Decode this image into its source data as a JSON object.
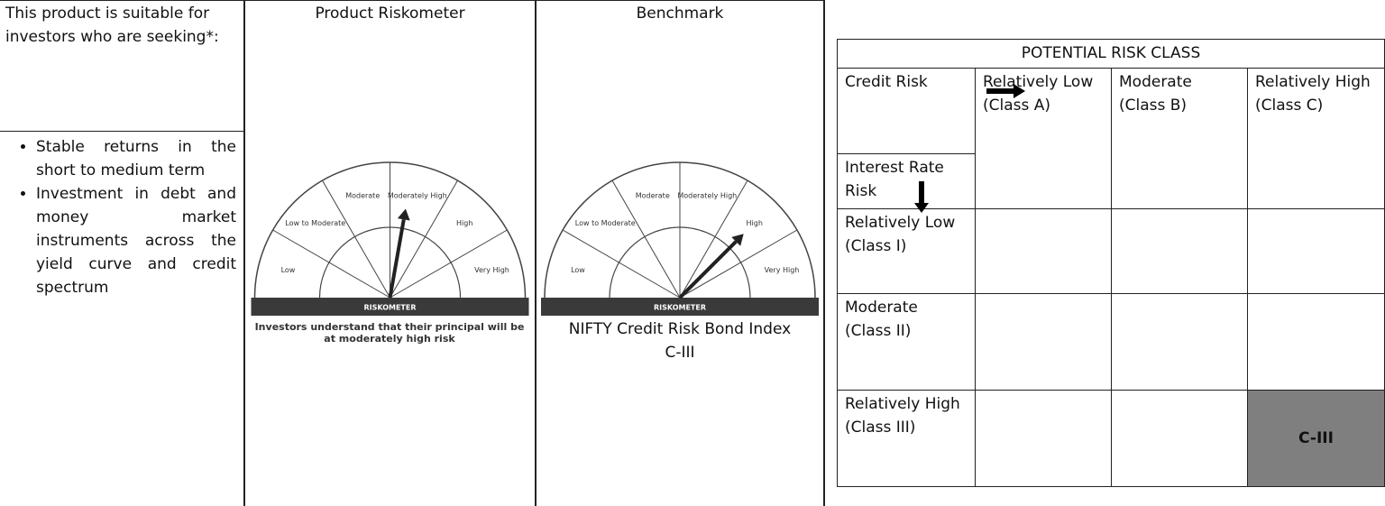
{
  "suitability": {
    "header": "This product is suitable for investors who are seeking*:",
    "objectives": [
      "Stable returns in the short to medium term",
      "Investment in debt and money market instruments across the yield curve and credit spectrum"
    ]
  },
  "product_riskometer": {
    "heading": "Product Riskometer",
    "levels": [
      "Low",
      "Low to Moderate",
      "Moderate",
      "Moderately High",
      "High",
      "Very High"
    ],
    "title": "RISKOMETER",
    "caption": "Investors understand that their principal will be at moderately high risk"
  },
  "benchmark": {
    "heading": "Benchmark",
    "levels": [
      "Low",
      "Low to Moderate",
      "Moderate",
      "Moderately High",
      "High",
      "Very High"
    ],
    "title": "RISKOMETER",
    "name": "NIFTY Credit Risk Bond Index C-III"
  },
  "potential_risk_class": {
    "title": "POTENTIAL RISK CLASS",
    "credit_risk_label": "Credit Risk",
    "interest_rate_risk_label": "Interest Rate Risk",
    "columns": [
      "Relatively Low (Class A)",
      "Moderate (Class B)",
      "Relatively High (Class C)"
    ],
    "rows": [
      "Relatively Low (Class I)",
      "Moderate (Class II)",
      "Relatively High (Class III)"
    ],
    "selected_cell": "C-III"
  }
}
